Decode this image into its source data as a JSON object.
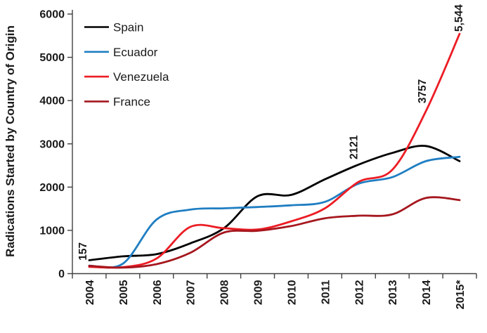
{
  "chart_data": {
    "type": "line",
    "title": "",
    "xlabel": "",
    "ylabel": "Radications Started by Country of Origin",
    "categories": [
      "2004",
      "2005",
      "2006",
      "2007",
      "2008",
      "2009",
      "2010",
      "2011",
      "2012",
      "2013",
      "2014",
      "2015*"
    ],
    "series": [
      {
        "name": "Spain",
        "color": "#000000",
        "values": [
          310,
          400,
          450,
          700,
          1050,
          1790,
          1820,
          2180,
          2520,
          2790,
          2950,
          2600
        ]
      },
      {
        "name": "Ecuador",
        "color": "#1F7EC2",
        "values": [
          185,
          230,
          1250,
          1480,
          1510,
          1540,
          1580,
          1660,
          2080,
          2230,
          2600,
          2700
        ]
      },
      {
        "name": "Venezuela",
        "color": "#EC1C24",
        "values": [
          157,
          150,
          350,
          1080,
          1050,
          1020,
          1210,
          1510,
          2121,
          2400,
          3757,
          5544
        ]
      },
      {
        "name": "France",
        "color": "#A5171E",
        "values": [
          180,
          140,
          220,
          480,
          950,
          990,
          1100,
          1280,
          1340,
          1370,
          1750,
          1700
        ]
      }
    ],
    "ylim": [
      0,
      6000
    ],
    "yticks": [
      0,
      1000,
      2000,
      3000,
      4000,
      5000,
      6000
    ],
    "grid": false,
    "legend_position": "top-left-inside",
    "annotations": [
      {
        "text": "157",
        "series": "Venezuela",
        "category": "2004"
      },
      {
        "text": "2121",
        "series": "Venezuela",
        "category": "2012"
      },
      {
        "text": "3757",
        "series": "Venezuela",
        "category": "2014"
      },
      {
        "text": "5,544",
        "series": "Venezuela",
        "category": "2015*"
      }
    ],
    "colors": {
      "axis": "#404040",
      "text": "#1a1a1a",
      "background": "#ffffff"
    }
  }
}
